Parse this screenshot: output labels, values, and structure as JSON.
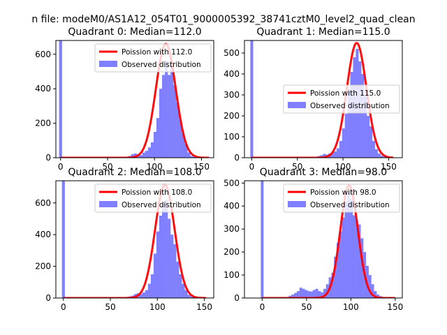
{
  "figure": {
    "suptitle": "n file: modeM0/AS1A12_054T01_9000005392_38741cztM0_level2_quad_clean"
  },
  "colors": {
    "hist": "#8080ff",
    "fit": "#ff0000",
    "axis": "#000000"
  },
  "chart_data": [
    {
      "type": "bar",
      "title": "Quadrant 0: Median=112.0",
      "xlim": [
        -5,
        163
      ],
      "ylim": [
        0,
        680
      ],
      "xticks": [
        0,
        50,
        100,
        150
      ],
      "yticks": [
        0,
        200,
        400,
        600
      ],
      "bin_width": 3.15,
      "spike": {
        "x": 0,
        "value": 680
      },
      "hist_x": [
        63,
        66,
        69,
        72,
        75,
        78,
        81,
        84,
        87,
        90,
        93,
        96,
        99,
        102,
        105,
        108,
        111,
        114,
        117,
        120,
        123,
        126,
        129,
        132,
        135,
        138,
        141,
        144,
        147,
        150,
        153
      ],
      "hist_values": [
        0,
        0,
        5,
        10,
        20,
        25,
        20,
        15,
        30,
        40,
        60,
        90,
        150,
        230,
        400,
        480,
        560,
        480,
        560,
        420,
        320,
        220,
        140,
        80,
        30,
        10,
        5,
        3,
        0,
        0,
        0
      ],
      "fit_mean": 112.0,
      "fit_peak": 660,
      "fit_range": [
        0,
        158
      ],
      "legend_location": "upper right",
      "legend": [
        {
          "label": "Poission with 112.0",
          "kind": "line"
        },
        {
          "label": "Observed distribution",
          "kind": "patch"
        }
      ]
    },
    {
      "type": "bar",
      "title": "Quadrant 1: Median=115.0",
      "xlim": [
        -8,
        165
      ],
      "ylim": [
        0,
        560
      ],
      "xticks": [
        0,
        50,
        100,
        150
      ],
      "yticks": [
        0,
        100,
        200,
        300,
        400,
        500
      ],
      "bin_width": 3.15,
      "spike": {
        "x": 0,
        "value": 560
      },
      "hist_x": [
        66,
        69,
        72,
        75,
        78,
        81,
        84,
        87,
        90,
        93,
        96,
        99,
        102,
        105,
        108,
        111,
        114,
        117,
        120,
        123,
        126,
        129,
        132,
        135,
        138,
        141,
        144,
        147
      ],
      "hist_values": [
        0,
        4,
        8,
        12,
        18,
        15,
        20,
        25,
        30,
        45,
        80,
        140,
        210,
        320,
        410,
        480,
        520,
        460,
        400,
        300,
        200,
        150,
        80,
        40,
        20,
        10,
        5,
        0
      ],
      "fit_mean": 115.0,
      "fit_peak": 548,
      "fit_range": [
        0,
        155
      ],
      "legend_location": "center right",
      "legend": [
        {
          "label": "Poission with 115.0",
          "kind": "line"
        },
        {
          "label": "Observed distribution",
          "kind": "patch"
        }
      ]
    },
    {
      "type": "bar",
      "title": "Quadrant 2: Median=108.0",
      "xlim": [
        -8,
        160
      ],
      "ylim": [
        0,
        740
      ],
      "xticks": [
        0,
        50,
        100,
        150
      ],
      "yticks": [
        0,
        200,
        400,
        600
      ],
      "bin_width": 3.15,
      "spike": {
        "x": 0,
        "value": 740
      },
      "hist_x": [
        63,
        66,
        69,
        72,
        75,
        78,
        81,
        84,
        87,
        90,
        93,
        96,
        99,
        102,
        105,
        108,
        111,
        114,
        117,
        120,
        123,
        126,
        129,
        132,
        135,
        138,
        141
      ],
      "hist_values": [
        0,
        5,
        10,
        15,
        25,
        30,
        25,
        35,
        50,
        90,
        150,
        280,
        420,
        520,
        600,
        620,
        500,
        400,
        340,
        230,
        150,
        90,
        50,
        20,
        10,
        5,
        0
      ],
      "fit_mean": 108.0,
      "fit_peak": 715,
      "fit_range": [
        0,
        152
      ],
      "legend_location": "upper right",
      "legend": [
        {
          "label": "Poission with 108.0",
          "kind": "line"
        },
        {
          "label": "Observed distribution",
          "kind": "patch"
        }
      ]
    },
    {
      "type": "bar",
      "title": "Quadrant 3: Median=98.0",
      "xlim": [
        -20,
        158
      ],
      "ylim": [
        0,
        510
      ],
      "xticks": [
        0,
        50,
        100,
        150
      ],
      "yticks": [
        0,
        100,
        200,
        300,
        400,
        500
      ],
      "bin_width": 3.15,
      "spike": {
        "x": 0,
        "value": 510
      },
      "hist_x": [
        27,
        30,
        33,
        36,
        39,
        42,
        45,
        48,
        51,
        54,
        57,
        60,
        63,
        66,
        69,
        72,
        75,
        78,
        81,
        84,
        87,
        90,
        93,
        96,
        99,
        102,
        105,
        108,
        111,
        114,
        117,
        120,
        123,
        126,
        129,
        132,
        135
      ],
      "hist_values": [
        5,
        10,
        15,
        22,
        30,
        45,
        40,
        35,
        30,
        28,
        35,
        40,
        30,
        25,
        40,
        60,
        90,
        110,
        180,
        240,
        290,
        350,
        420,
        460,
        430,
        360,
        340,
        320,
        260,
        200,
        140,
        100,
        60,
        30,
        15,
        8,
        0
      ],
      "fit_mean": 98.0,
      "fit_peak": 490,
      "fit_range": [
        0,
        150
      ],
      "legend_location": "upper right",
      "legend": [
        {
          "label": "Poission with 98.0",
          "kind": "line"
        },
        {
          "label": "Observed distribution",
          "kind": "patch"
        }
      ]
    }
  ]
}
